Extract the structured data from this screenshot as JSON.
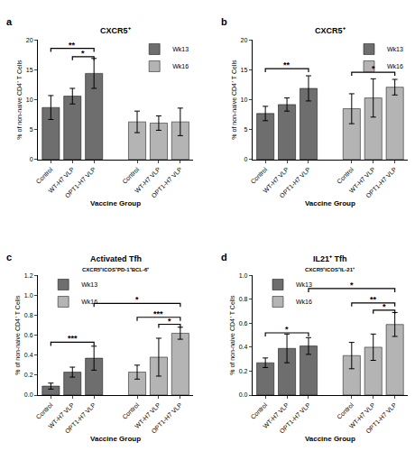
{
  "chart_data": [
    {
      "type": "bar",
      "label": "a",
      "title": "CXCR5⁺",
      "x_label": "Vaccine Group",
      "y_label": "% of non-naive CD4⁺ T Cells",
      "categories": [
        "Control",
        "WT-H7 VLP",
        "OPT1-H7 VLP"
      ],
      "series": [
        {
          "name": "Wk13",
          "color": "#6e6e6e",
          "values": [
            8.7,
            10.6,
            14.4
          ],
          "error": [
            2.0,
            1.3,
            2.5
          ]
        },
        {
          "name": "Wk16",
          "color": "#b4b4b4",
          "values": [
            6.3,
            6.1,
            6.3
          ],
          "error": [
            1.8,
            1.2,
            2.3
          ]
        }
      ],
      "ylim": [
        0,
        20
      ],
      "yticks": [
        0,
        5,
        10,
        15,
        20
      ],
      "grid": false,
      "legend": "upper right",
      "brackets": [
        {
          "from": [
            "Wk13",
            "Control"
          ],
          "to": [
            "Wk13",
            "OPT1-H7 VLP"
          ],
          "y": 18.6,
          "text": "**"
        },
        {
          "from": [
            "Wk13",
            "WT-H7 VLP"
          ],
          "to": [
            "Wk13",
            "OPT1-H7 VLP"
          ],
          "y": 17.2,
          "text": "*"
        }
      ]
    },
    {
      "type": "bar",
      "label": "b",
      "title": "CXCR5⁺",
      "x_label": "Vaccine Group",
      "y_label": "% of non-naive CD4⁺ T Cells",
      "categories": [
        "Control",
        "WT-H7 VLP",
        "OPT1-H7 VLP"
      ],
      "series": [
        {
          "name": "Wk13",
          "color": "#6e6e6e",
          "values": [
            7.7,
            9.2,
            11.9
          ],
          "error": [
            1.2,
            1.1,
            2.1
          ]
        },
        {
          "name": "Wk16",
          "color": "#b4b4b4",
          "values": [
            8.5,
            10.3,
            12.1
          ],
          "error": [
            2.5,
            3.2,
            1.3
          ]
        }
      ],
      "ylim": [
        0,
        20
      ],
      "yticks": [
        0,
        5,
        10,
        15,
        20
      ],
      "grid": false,
      "legend": "upper right",
      "brackets": [
        {
          "from": [
            "Wk13",
            "Control"
          ],
          "to": [
            "Wk13",
            "OPT1-H7 VLP"
          ],
          "y": 15.2,
          "text": "**"
        },
        {
          "from": [
            "Wk16",
            "Control"
          ],
          "to": [
            "Wk16",
            "OPT1-H7 VLP"
          ],
          "y": 14.6,
          "text": "*"
        }
      ]
    },
    {
      "type": "bar",
      "label": "c",
      "title": "Activated Tfh",
      "subtitle": "CXCR5⁺ICOS⁺PD-1⁺BCL-6⁺",
      "x_label": "Vaccine Group",
      "y_label": "% of non-naive CD4⁺ T Cells",
      "categories": [
        "Control",
        "WT-H7 VLP",
        "OPT1-H7 VLP"
      ],
      "series": [
        {
          "name": "Wk13",
          "color": "#6e6e6e",
          "values": [
            0.09,
            0.23,
            0.37
          ],
          "error": [
            0.03,
            0.05,
            0.12
          ]
        },
        {
          "name": "Wk16",
          "color": "#b4b4b4",
          "values": [
            0.23,
            0.38,
            0.62
          ],
          "error": [
            0.07,
            0.19,
            0.06
          ]
        }
      ],
      "ylim": [
        0,
        1.2
      ],
      "yticks": [
        {
          "value": 0,
          "label": "0.0"
        },
        0.2,
        0.4,
        0.6,
        0.8,
        {
          "value": 1,
          "label": "1.0"
        },
        1.2
      ],
      "grid": false,
      "legend": "upper left",
      "brackets": [
        {
          "from": [
            "Wk13",
            "Control"
          ],
          "to": [
            "Wk13",
            "OPT1-H7 VLP"
          ],
          "y": 0.53,
          "text": "***"
        },
        {
          "from": [
            "Wk16",
            "WT-H7 VLP"
          ],
          "to": [
            "Wk16",
            "OPT1-H7 VLP"
          ],
          "y": 0.71,
          "text": "*"
        },
        {
          "from": [
            "Wk16",
            "Control"
          ],
          "to": [
            "Wk16",
            "OPT1-H7 VLP"
          ],
          "y": 0.78,
          "text": "***"
        },
        {
          "from": [
            "Wk13",
            "OPT1-H7 VLP"
          ],
          "to": [
            "Wk16",
            "OPT1-H7 VLP"
          ],
          "y": 0.92,
          "text": "*"
        }
      ]
    },
    {
      "type": "bar",
      "label": "d",
      "title": "IL21⁺ Tfh",
      "subtitle": "CXCR5⁺ICOS⁺IL-21⁺",
      "x_label": "Vaccine Group",
      "y_label": "% of non-naive CD4⁺ T Cells",
      "categories": [
        "Control",
        "WT-H7 VLP",
        "OPT1-H7 VLP"
      ],
      "series": [
        {
          "name": "Wk13",
          "color": "#6e6e6e",
          "values": [
            0.27,
            0.39,
            0.41
          ],
          "error": [
            0.04,
            0.12,
            0.07
          ]
        },
        {
          "name": "Wk16",
          "color": "#b4b4b4",
          "values": [
            0.33,
            0.4,
            0.59
          ],
          "error": [
            0.11,
            0.11,
            0.1
          ]
        }
      ],
      "ylim": [
        0,
        1.0
      ],
      "yticks": [
        {
          "value": 0,
          "label": "0.0"
        },
        0.2,
        0.4,
        0.6,
        0.8,
        {
          "value": 1,
          "label": "1.0"
        }
      ],
      "grid": false,
      "legend": "upper left",
      "brackets": [
        {
          "from": [
            "Wk13",
            "Control"
          ],
          "to": [
            "Wk13",
            "OPT1-H7 VLP"
          ],
          "y": 0.52,
          "text": "*"
        },
        {
          "from": [
            "Wk16",
            "WT-H7 VLP"
          ],
          "to": [
            "Wk16",
            "OPT1-H7 VLP"
          ],
          "y": 0.71,
          "text": "*"
        },
        {
          "from": [
            "Wk16",
            "Control"
          ],
          "to": [
            "Wk16",
            "OPT1-H7 VLP"
          ],
          "y": 0.77,
          "text": "**"
        },
        {
          "from": [
            "Wk13",
            "OPT1-H7 VLP"
          ],
          "to": [
            "Wk16",
            "OPT1-H7 VLP"
          ],
          "y": 0.89,
          "text": "*"
        }
      ]
    }
  ]
}
